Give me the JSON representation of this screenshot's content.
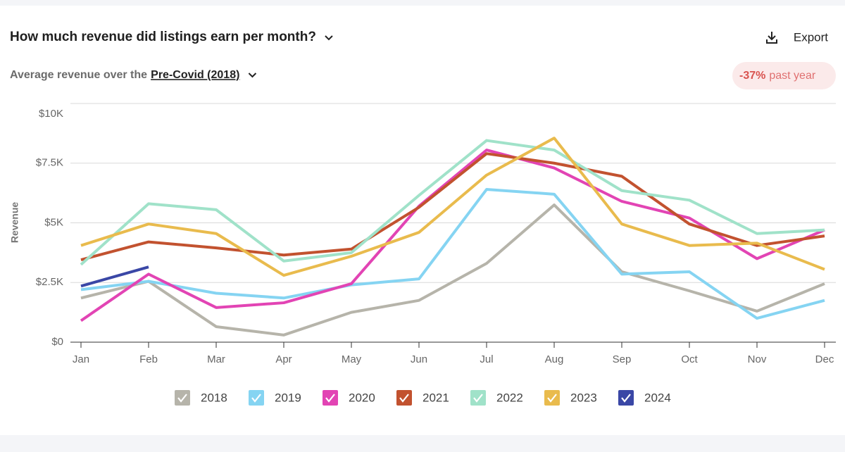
{
  "header": {
    "title": "How much revenue did listings earn per month?",
    "export": "Export",
    "subtitle": "Average revenue over the",
    "period": "Pre-Covid (2018)",
    "badge_value": "-37%",
    "badge_text": "past year"
  },
  "chart_data": {
    "type": "line",
    "y_label": "Revenue",
    "categories": [
      "Jan",
      "Feb",
      "Mar",
      "Apr",
      "May",
      "Jun",
      "Jul",
      "Aug",
      "Sep",
      "Oct",
      "Nov",
      "Dec"
    ],
    "ylim": [
      0,
      10000
    ],
    "yticks": [
      {
        "value": 0,
        "label": "$0"
      },
      {
        "value": 2500,
        "label": "$2.5K"
      },
      {
        "value": 5000,
        "label": "$5K"
      },
      {
        "value": 7500,
        "label": "$7.5K"
      },
      {
        "value": 10000,
        "label": "$10K"
      }
    ],
    "grid": true,
    "series": [
      {
        "name": "2018",
        "color": "#b6b4aa",
        "values": [
          1850,
          2550,
          650,
          300,
          1250,
          1750,
          3300,
          5750,
          2950,
          2150,
          1300,
          2450
        ]
      },
      {
        "name": "2019",
        "color": "#85d4f2",
        "values": [
          2200,
          2550,
          2050,
          1850,
          2400,
          2650,
          6400,
          6200,
          2850,
          2950,
          1000,
          1750
        ]
      },
      {
        "name": "2020",
        "color": "#e244b4",
        "values": [
          900,
          2850,
          1450,
          1650,
          2450,
          5700,
          8050,
          7300,
          5900,
          5200,
          3500,
          4700
        ]
      },
      {
        "name": "2021",
        "color": "#c2522f",
        "values": [
          3450,
          4200,
          3950,
          3650,
          3900,
          5650,
          7900,
          7500,
          6950,
          4950,
          4050,
          4450
        ]
      },
      {
        "name": "2022",
        "color": "#a0e2c9",
        "values": [
          3250,
          5800,
          5550,
          3400,
          3750,
          6150,
          8450,
          8050,
          6350,
          5950,
          4550,
          4700
        ]
      },
      {
        "name": "2023",
        "color": "#e9bb4d",
        "values": [
          4050,
          4950,
          4550,
          2800,
          3600,
          4600,
          7000,
          8550,
          4950,
          4050,
          4150,
          3050
        ]
      },
      {
        "name": "2024",
        "color": "#3a47a6",
        "values": [
          2350,
          3150,
          null,
          null,
          null,
          null,
          null,
          null,
          null,
          null,
          null,
          null
        ]
      }
    ]
  }
}
